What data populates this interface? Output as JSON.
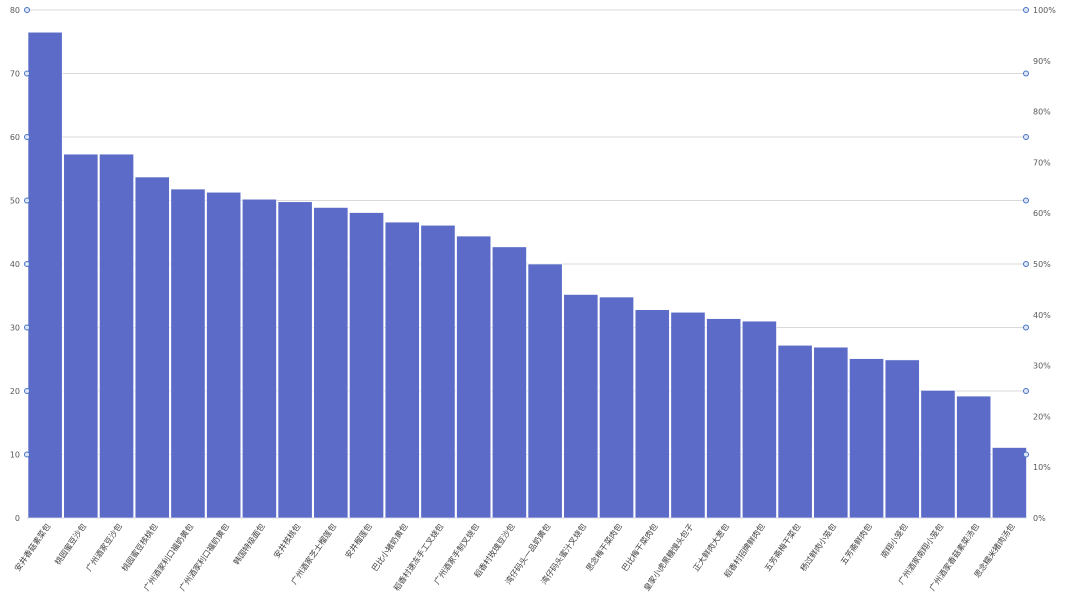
{
  "chart_data": {
    "type": "bar",
    "categories": [
      "安井香菇素菜包",
      "桃园蜜豆沙包",
      "广州酒家豆沙包",
      "桃园蜜豆核桃包",
      "广州酒家利口福奶黄包",
      "广州酒家利口福奶黄包",
      "韩国特级面包",
      "安井核桃包",
      "广州酒家芝士榴莲包",
      "安井榴莲包",
      "巴比小猪奶黄包",
      "稻香村速冻手工叉烧包",
      "广州酒家手制叉烧包",
      "稻香村玫瑰豆沙包",
      "湾仔码头一品奶黄包",
      "湾仔码头蜜汁叉烧包",
      "思念梅干菜肉包",
      "巴比梅干菜肉包",
      "皇家小虎黑糖馒头包子",
      "正大鲜肉大葱包",
      "稻香村招牌鲜肉包",
      "五芳斋梅干菜包",
      "杨过鲜肉小笼包",
      "五芳斋鲜肉包",
      "南翔小笼包",
      "广州酒家南翔小笼包",
      "广州酒家香菇素菜汤包",
      "思念糯米猪肉汤包"
    ],
    "values": [
      76.5,
      57.3,
      57.3,
      53.7,
      51.8,
      51.3,
      50.2,
      49.8,
      48.9,
      48.1,
      46.6,
      46.1,
      44.4,
      42.7,
      40.0,
      35.2,
      34.8,
      32.8,
      32.4,
      31.4,
      31.0,
      27.2,
      26.9,
      25.1,
      24.9,
      20.1,
      19.2,
      11.1
    ],
    "ylim": [
      0,
      80
    ],
    "yticks": [
      "0",
      "10",
      "20",
      "30",
      "40",
      "50",
      "60",
      "70",
      "80"
    ],
    "y2lim": [
      0,
      100
    ],
    "y2ticks": [
      "0%",
      "10%",
      "20%",
      "30%",
      "40%",
      "50%",
      "60%",
      "70%",
      "80%",
      "90%",
      "100%"
    ],
    "bar_color": "#5b6bc7",
    "grid": true,
    "title": "",
    "xlabel": "",
    "ylabel": ""
  }
}
